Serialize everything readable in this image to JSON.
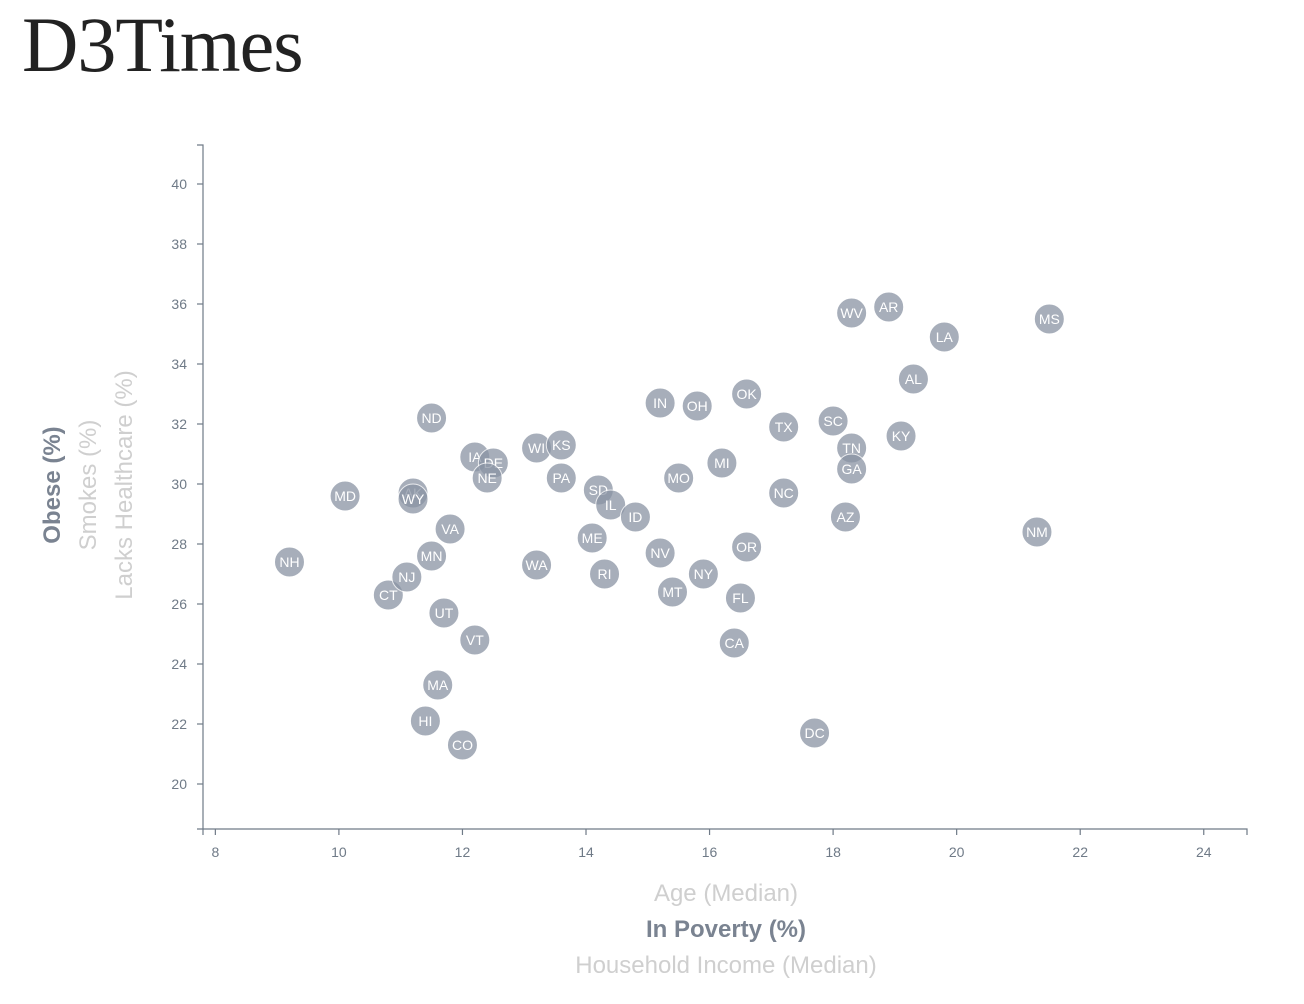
{
  "page": {
    "title": "D3Times"
  },
  "chart_data": {
    "type": "scatter",
    "x_labels": [
      "Age (Median)",
      "In Poverty (%)",
      "Household Income (Median)"
    ],
    "x_active": "In Poverty (%)",
    "y_labels": [
      "Obese (%)",
      "Smokes (%)",
      "Lacks Healthcare (%)"
    ],
    "y_active": "Obese (%)",
    "xlim": [
      7.8,
      24.7
    ],
    "ylim": [
      18.5,
      41.3
    ],
    "x_ticks": [
      8,
      10,
      12,
      14,
      16,
      18,
      20,
      22,
      24
    ],
    "y_ticks": [
      20,
      22,
      24,
      26,
      28,
      30,
      32,
      34,
      36,
      38,
      40
    ],
    "grid": false,
    "colors": {
      "point": "#8a94a4",
      "active_axis": "#7a8391",
      "inactive_axis": "#cfcfcf"
    },
    "points": [
      {
        "label": "NH",
        "x": 9.2,
        "y": 27.4
      },
      {
        "label": "MD",
        "x": 10.1,
        "y": 29.6
      },
      {
        "label": "AK",
        "x": 11.2,
        "y": 29.7
      },
      {
        "label": "WY",
        "x": 11.2,
        "y": 29.5
      },
      {
        "label": "CT",
        "x": 10.8,
        "y": 26.3
      },
      {
        "label": "NJ",
        "x": 11.1,
        "y": 26.9
      },
      {
        "label": "MN",
        "x": 11.5,
        "y": 27.6
      },
      {
        "label": "VA",
        "x": 11.8,
        "y": 28.5
      },
      {
        "label": "ND",
        "x": 11.5,
        "y": 32.2
      },
      {
        "label": "UT",
        "x": 11.7,
        "y": 25.7
      },
      {
        "label": "VT",
        "x": 12.2,
        "y": 24.8
      },
      {
        "label": "MA",
        "x": 11.6,
        "y": 23.3
      },
      {
        "label": "HI",
        "x": 11.4,
        "y": 22.1
      },
      {
        "label": "CO",
        "x": 12.0,
        "y": 21.3
      },
      {
        "label": "IA",
        "x": 12.2,
        "y": 30.9
      },
      {
        "label": "DE",
        "x": 12.5,
        "y": 30.7
      },
      {
        "label": "NE",
        "x": 12.4,
        "y": 30.2
      },
      {
        "label": "WI",
        "x": 13.2,
        "y": 31.2
      },
      {
        "label": "KS",
        "x": 13.6,
        "y": 31.3
      },
      {
        "label": "PA",
        "x": 13.6,
        "y": 30.2
      },
      {
        "label": "WA",
        "x": 13.2,
        "y": 27.3
      },
      {
        "label": "SD",
        "x": 14.2,
        "y": 29.8
      },
      {
        "label": "IL",
        "x": 14.4,
        "y": 29.3
      },
      {
        "label": "ME",
        "x": 14.1,
        "y": 28.2
      },
      {
        "label": "RI",
        "x": 14.3,
        "y": 27.0
      },
      {
        "label": "ID",
        "x": 14.8,
        "y": 28.9
      },
      {
        "label": "IN",
        "x": 15.2,
        "y": 32.7
      },
      {
        "label": "OH",
        "x": 15.8,
        "y": 32.6
      },
      {
        "label": "MO",
        "x": 15.5,
        "y": 30.2
      },
      {
        "label": "NV",
        "x": 15.2,
        "y": 27.7
      },
      {
        "label": "MT",
        "x": 15.4,
        "y": 26.4
      },
      {
        "label": "NY",
        "x": 15.9,
        "y": 27.0
      },
      {
        "label": "MI",
        "x": 16.2,
        "y": 30.7
      },
      {
        "label": "OK",
        "x": 16.6,
        "y": 33.0
      },
      {
        "label": "OR",
        "x": 16.6,
        "y": 27.9
      },
      {
        "label": "FL",
        "x": 16.5,
        "y": 26.2
      },
      {
        "label": "CA",
        "x": 16.4,
        "y": 24.7
      },
      {
        "label": "TX",
        "x": 17.2,
        "y": 31.9
      },
      {
        "label": "NC",
        "x": 17.2,
        "y": 29.7
      },
      {
        "label": "DC",
        "x": 17.7,
        "y": 21.7
      },
      {
        "label": "SC",
        "x": 18.0,
        "y": 32.1
      },
      {
        "label": "TN",
        "x": 18.3,
        "y": 31.2
      },
      {
        "label": "GA",
        "x": 18.3,
        "y": 30.5
      },
      {
        "label": "AZ",
        "x": 18.2,
        "y": 28.9
      },
      {
        "label": "WV",
        "x": 18.3,
        "y": 35.7
      },
      {
        "label": "AR",
        "x": 18.9,
        "y": 35.9
      },
      {
        "label": "KY",
        "x": 19.1,
        "y": 31.6
      },
      {
        "label": "AL",
        "x": 19.3,
        "y": 33.5
      },
      {
        "label": "LA",
        "x": 19.8,
        "y": 34.9
      },
      {
        "label": "NM",
        "x": 21.3,
        "y": 28.4
      },
      {
        "label": "MS",
        "x": 21.5,
        "y": 35.5
      }
    ]
  }
}
